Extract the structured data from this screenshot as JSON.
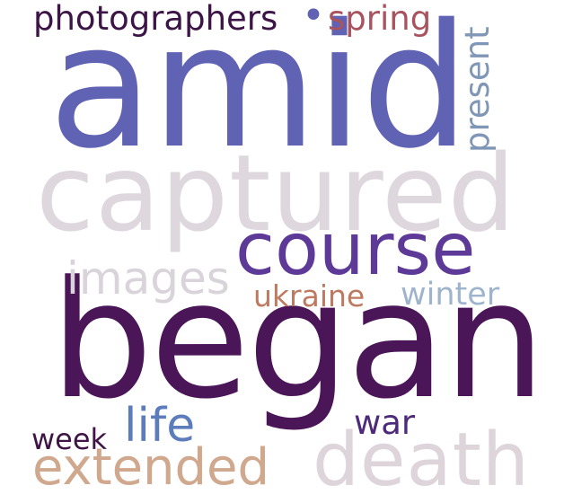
{
  "words": {
    "began": {
      "text": "began",
      "color": "#4a1658"
    },
    "amid": {
      "text": "amid",
      "color": "#6062b4"
    },
    "captured": {
      "text": "captured",
      "color": "#ded8de"
    },
    "course": {
      "text": "course",
      "color": "#5e3a98"
    },
    "extended": {
      "text": "extended",
      "color": "#cfa88d"
    },
    "death": {
      "text": "death",
      "color": "#ddd5da"
    },
    "images": {
      "text": "images",
      "color": "#d9d3da"
    },
    "photographers": {
      "text": "photographers",
      "color": "#3c1446"
    },
    "spring": {
      "text": "spring",
      "color": "#a8535d"
    },
    "present": {
      "text": "present",
      "color": "#7f96b6"
    },
    "ukraine": {
      "text": "ukraine",
      "color": "#bd7a60"
    },
    "winter": {
      "text": "winter",
      "color": "#9eb4cc"
    },
    "life": {
      "text": "life",
      "color": "#5d7cbb"
    },
    "war": {
      "text": "war",
      "color": "#4d2a7a"
    },
    "week": {
      "text": "week",
      "color": "#3e1545"
    },
    "dot": {
      "text": "•",
      "color": "#6062b4"
    }
  }
}
